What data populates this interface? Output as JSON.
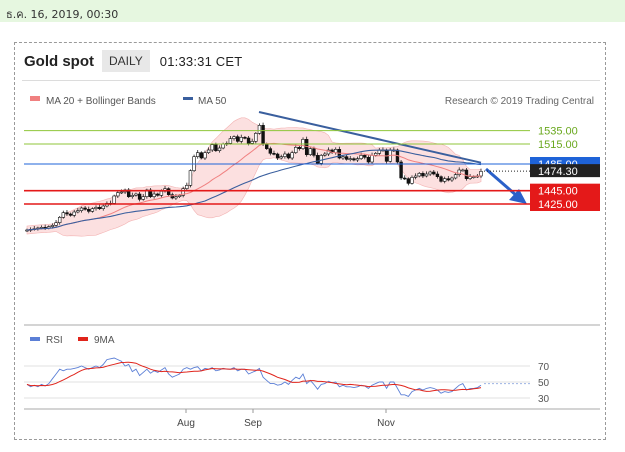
{
  "top_date": "ธ.ค. 16, 2019, 00:30",
  "header": {
    "title": "Gold spot",
    "period": "DAILY",
    "time": "01:33:31 CET"
  },
  "legend": {
    "ma20": "MA 20 + Bollinger Bands",
    "ma50": "MA 50",
    "source": "Research © 2019 Trading Central",
    "ma20_color": "#f08080",
    "ma50_color": "#3a5f9e"
  },
  "rsi_legend": {
    "rsi": "RSI",
    "nine_ma": "9MA",
    "rsi_color": "#5b7fd6",
    "ma_color": "#e0241b"
  },
  "colors": {
    "support": "#e41919",
    "resistance": "#8fc63a",
    "pivot": "#1e63d8",
    "band": "#fbd6d6"
  },
  "chart_data": [
    {
      "type": "line",
      "title": "Gold spot",
      "period": "DAILY",
      "x_ticks": [
        "Aug",
        "Sep",
        "Nov"
      ],
      "ylim": [
        1370,
        1560
      ],
      "levels": [
        {
          "label": "1535.00",
          "value": 1535,
          "role": "resistance"
        },
        {
          "label": "1515.00",
          "value": 1515,
          "role": "resistance"
        },
        {
          "label": "1485.00",
          "value": 1485,
          "role": "pivot"
        },
        {
          "label": "1474.30",
          "value": 1474.3,
          "role": "last"
        },
        {
          "label": "1445.00",
          "value": 1445,
          "role": "support"
        },
        {
          "label": "1425.00",
          "value": 1425,
          "role": "support"
        }
      ],
      "series": [
        {
          "name": "MA 20 + Bollinger Bands"
        },
        {
          "name": "MA 50"
        }
      ],
      "close_approx": [
        1386,
        1387,
        1388,
        1389,
        1390,
        1389,
        1391,
        1393,
        1397,
        1405,
        1412,
        1410,
        1408,
        1413,
        1415,
        1419,
        1417,
        1414,
        1418,
        1420,
        1418,
        1422,
        1426,
        1426,
        1437,
        1442,
        1443,
        1446,
        1436,
        1438,
        1440,
        1432,
        1436,
        1446,
        1436,
        1440,
        1438,
        1444,
        1448,
        1439,
        1434,
        1436,
        1438,
        1448,
        1453,
        1475,
        1496,
        1502,
        1494,
        1502,
        1506,
        1514,
        1505,
        1509,
        1515,
        1516,
        1523,
        1526,
        1519,
        1525,
        1524,
        1516,
        1519,
        1531,
        1543,
        1515,
        1508,
        1501,
        1500,
        1494,
        1496,
        1500,
        1494,
        1502,
        1510,
        1508,
        1522,
        1499,
        1508,
        1498,
        1486,
        1498,
        1500,
        1506,
        1502,
        1507,
        1494,
        1496,
        1492,
        1493,
        1491,
        1493,
        1498,
        1495,
        1488,
        1498,
        1501,
        1506,
        1506,
        1489,
        1506,
        1506,
        1488,
        1464,
        1463,
        1456,
        1465,
        1467,
        1471,
        1467,
        1470,
        1473,
        1470,
        1466,
        1459,
        1463,
        1461,
        1464,
        1469,
        1476,
        1476,
        1463,
        1466,
        1466,
        1467,
        1474
      ]
    },
    {
      "type": "line",
      "title": "RSI",
      "yticks": [
        70,
        50,
        30
      ],
      "ylim": [
        20,
        100
      ],
      "series": [
        {
          "name": "RSI"
        },
        {
          "name": "9MA"
        }
      ],
      "rsi_approx": [
        47,
        44,
        46,
        44,
        47,
        45,
        48,
        54,
        60,
        66,
        64,
        66,
        66,
        67,
        68,
        70,
        68,
        66,
        68,
        70,
        68,
        72,
        78,
        79,
        80,
        78,
        76,
        70,
        72,
        63,
        66,
        58,
        62,
        66,
        61,
        64,
        62,
        65,
        68,
        60,
        56,
        58,
        60,
        66,
        68,
        66,
        68,
        69,
        64,
        67,
        66,
        68,
        64,
        65,
        67,
        66,
        66,
        68,
        64,
        66,
        66,
        60,
        62,
        64,
        67,
        56,
        52,
        48,
        48,
        46,
        47,
        50,
        47,
        52,
        56,
        54,
        60,
        48,
        52,
        47,
        41,
        47,
        48,
        51,
        49,
        50,
        44,
        46,
        44,
        44,
        43,
        44,
        46,
        45,
        42,
        46,
        48,
        50,
        50,
        42,
        50,
        50,
        42,
        34,
        34,
        32,
        38,
        40,
        42,
        40,
        42,
        43,
        42,
        40,
        36,
        38,
        37,
        38,
        42,
        46,
        48,
        40,
        42,
        42,
        43,
        46
      ]
    }
  ]
}
